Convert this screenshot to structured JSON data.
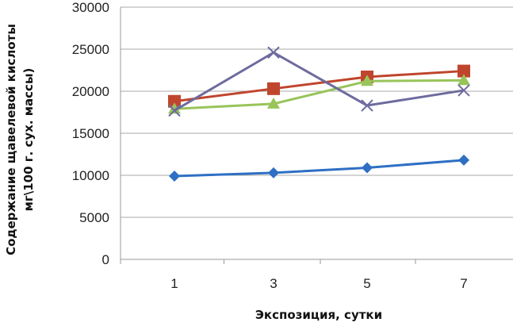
{
  "chart_data": {
    "type": "line",
    "title": "",
    "xlabel": "Экспозиция, сутки",
    "ylabel_lines": [
      "Содержание щавелевой кислоты",
      "мг\\100 г. сух. массы)"
    ],
    "x": [
      "1",
      "3",
      "5",
      "7"
    ],
    "ylim": [
      0,
      30000
    ],
    "yticks": [
      "0",
      "5000",
      "10000",
      "15000",
      "20000",
      "25000",
      "30000"
    ],
    "grid": "horizontal",
    "legend": "none",
    "series": [
      {
        "color": "#2e6fc4",
        "marker": "diamond",
        "values": [
          9900,
          10300,
          10900,
          11800
        ]
      },
      {
        "color": "#c0452d",
        "marker": "square",
        "values": [
          18800,
          20300,
          21700,
          22400
        ]
      },
      {
        "color": "#98c45a",
        "marker": "triangle",
        "values": [
          17900,
          18500,
          21200,
          21300
        ]
      },
      {
        "color": "#6e6b9e",
        "marker": "x",
        "values": [
          17700,
          24600,
          18300,
          20100
        ]
      }
    ]
  }
}
